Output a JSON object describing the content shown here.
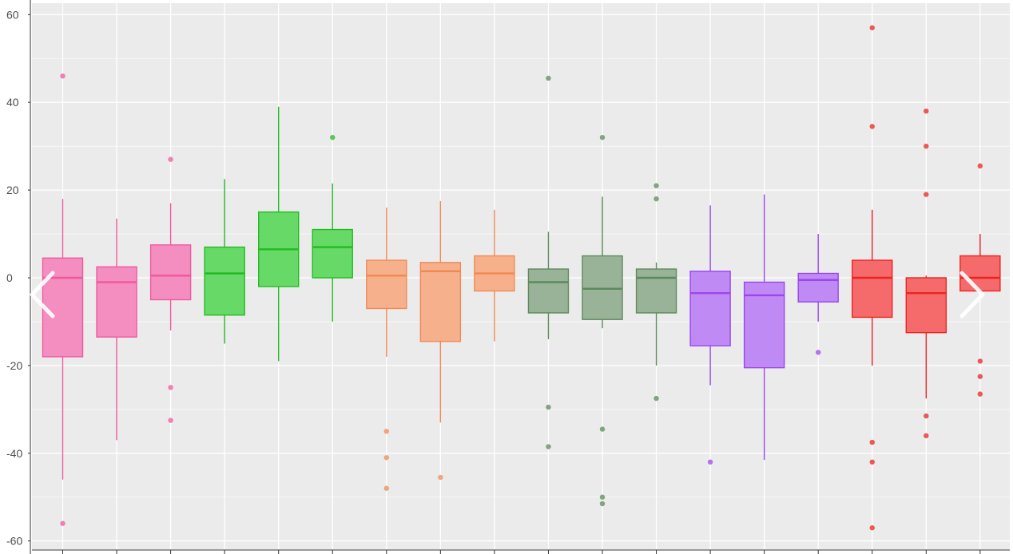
{
  "viewer": {
    "prev_icon": "chevron-left-icon",
    "next_icon": "chevron-right-icon"
  },
  "colors": {
    "panel_background": "#ebebeb",
    "grid": "#ffffff",
    "axis_text": "#4d4d4d"
  },
  "chart_data": {
    "type": "box",
    "title": "",
    "xlabel": "",
    "ylabel": "",
    "ylim": [
      -62,
      62
    ],
    "yticks": [
      -60,
      -40,
      -20,
      0,
      20,
      40,
      60
    ],
    "ytick_labels": [
      "-60",
      "-40",
      "-20",
      "0",
      "20",
      "40",
      "60"
    ],
    "x_tick_labels_visible": false,
    "grid": true,
    "legend": "none",
    "boxes": [
      {
        "fill": "#f58ec0",
        "line": "#f0589e",
        "q1": -18,
        "median": 0,
        "q3": 4.5,
        "whisker_low": -46,
        "whisker_high": 18,
        "outliers": [
          46,
          -56
        ]
      },
      {
        "fill": "#f58ec0",
        "line": "#f0589e",
        "q1": -13.5,
        "median": -1,
        "q3": 2.5,
        "whisker_low": -37,
        "whisker_high": 13.5,
        "outliers": []
      },
      {
        "fill": "#f58ec0",
        "line": "#f0589e",
        "q1": -5,
        "median": 0.5,
        "q3": 7.5,
        "whisker_low": -12,
        "whisker_high": 17,
        "outliers": [
          27,
          -25,
          -32.5
        ]
      },
      {
        "fill": "#66d966",
        "line": "#22bb22",
        "q1": -8.5,
        "median": 1,
        "q3": 7,
        "whisker_low": -15,
        "whisker_high": 22.5,
        "outliers": []
      },
      {
        "fill": "#66d966",
        "line": "#22bb22",
        "q1": -2,
        "median": 6.5,
        "q3": 15,
        "whisker_low": -19,
        "whisker_high": 39,
        "outliers": []
      },
      {
        "fill": "#66d966",
        "line": "#22bb22",
        "q1": 0,
        "median": 7,
        "q3": 11,
        "whisker_low": -10,
        "whisker_high": 21.5,
        "outliers": [
          32
        ]
      },
      {
        "fill": "#f7b08c",
        "line": "#f08a55",
        "q1": -7,
        "median": 0.5,
        "q3": 4,
        "whisker_low": -18,
        "whisker_high": 16,
        "outliers": [
          -35,
          -41,
          -48
        ]
      },
      {
        "fill": "#f7b08c",
        "line": "#f08a55",
        "q1": -14.5,
        "median": 1.5,
        "q3": 3.5,
        "whisker_low": -33,
        "whisker_high": 17.5,
        "outliers": [
          -45.5
        ]
      },
      {
        "fill": "#f7b08c",
        "line": "#f08a55",
        "q1": -3,
        "median": 1,
        "q3": 5,
        "whisker_low": -14.5,
        "whisker_high": 15.5,
        "outliers": []
      },
      {
        "fill": "#99b399",
        "line": "#5c8a5c",
        "q1": -8,
        "median": -1,
        "q3": 2,
        "whisker_low": -14,
        "whisker_high": 10.5,
        "outliers": [
          45.5,
          -29.5,
          -38.5
        ]
      },
      {
        "fill": "#99b399",
        "line": "#5c8a5c",
        "q1": -9.5,
        "median": -2.5,
        "q3": 5,
        "whisker_low": -11.5,
        "whisker_high": 18.5,
        "outliers": [
          32,
          -34.5,
          -50,
          -51.5
        ]
      },
      {
        "fill": "#99b399",
        "line": "#5c8a5c",
        "q1": -8,
        "median": 0,
        "q3": 2,
        "whisker_low": -20,
        "whisker_high": 3.5,
        "outliers": [
          21,
          18,
          -27.5
        ]
      },
      {
        "fill": "#c08af5",
        "line": "#9b45f0",
        "q1": -15.5,
        "median": -3.5,
        "q3": 1.5,
        "whisker_low": -24.5,
        "whisker_high": 16.5,
        "outliers": [
          -42
        ]
      },
      {
        "fill": "#c08af5",
        "line": "#9b45f0",
        "q1": -20.5,
        "median": -4,
        "q3": -1,
        "whisker_low": -41.5,
        "whisker_high": 19,
        "outliers": []
      },
      {
        "fill": "#c08af5",
        "line": "#9b45f0",
        "q1": -5.5,
        "median": -0.5,
        "q3": 1,
        "whisker_low": -10,
        "whisker_high": 10,
        "outliers": [
          -17
        ]
      },
      {
        "fill": "#f56b6b",
        "line": "#ee2222",
        "q1": -9,
        "median": 0,
        "q3": 4,
        "whisker_low": -20,
        "whisker_high": 15.5,
        "outliers": [
          57,
          34.5,
          -37.5,
          -42,
          -57
        ]
      },
      {
        "fill": "#f56b6b",
        "line": "#ee2222",
        "q1": -12.5,
        "median": -3.5,
        "q3": 0,
        "whisker_low": -27.5,
        "whisker_high": 0.5,
        "outliers": [
          38,
          30,
          19,
          -31.5,
          -36
        ]
      },
      {
        "fill": "#f56b6b",
        "line": "#ee2222",
        "q1": -3,
        "median": 0,
        "q3": 5,
        "whisker_low": -3,
        "whisker_high": 10,
        "outliers": [
          25.5,
          -19,
          -22.5,
          -26.5
        ]
      }
    ]
  }
}
